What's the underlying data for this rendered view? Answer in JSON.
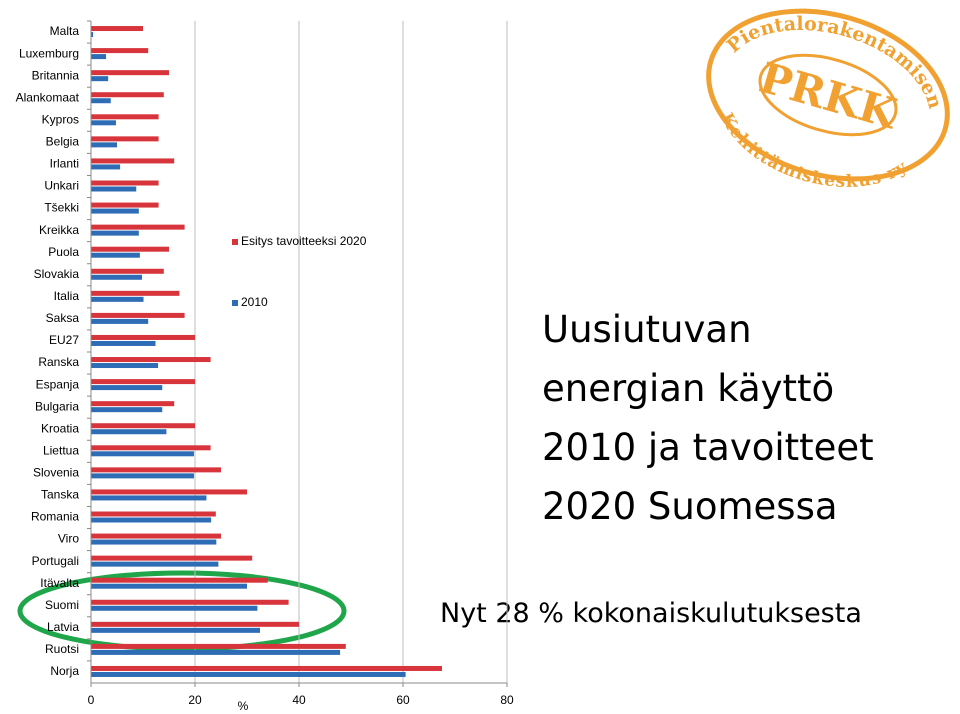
{
  "chart_data": {
    "type": "bar",
    "orientation": "horizontal",
    "categories": [
      "Malta",
      "Luxemburg",
      "Britannia",
      "Alankomaat",
      "Kypros",
      "Belgia",
      "Irlanti",
      "Unkari",
      "Tšekki",
      "Kreikka",
      "Puola",
      "Slovakia",
      "Italia",
      "Saksa",
      "EU27",
      "Ranska",
      "Espanja",
      "Bulgaria",
      "Kroatia",
      "Liettua",
      "Slovenia",
      "Tanska",
      "Romania",
      "Viro",
      "Portugali",
      "Itävalta",
      "Suomi",
      "Latvia",
      "Ruotsi",
      "Norja"
    ],
    "series": [
      {
        "name": "Esitys tavoitteeksi 2020",
        "color": "#d7343b",
        "values": [
          10,
          11,
          15,
          14,
          13,
          13,
          16,
          13,
          13,
          18,
          15,
          14,
          17,
          18,
          20,
          23,
          20,
          16,
          20,
          23,
          25,
          30,
          24,
          25,
          31,
          34,
          38,
          40,
          49,
          67.5
        ]
      },
      {
        "name": "2010",
        "color": "#2e6cb5",
        "values": [
          0.4,
          2.9,
          3.3,
          3.8,
          4.8,
          5,
          5.6,
          8.7,
          9.2,
          9.2,
          9.4,
          9.8,
          10.1,
          11,
          12.4,
          12.9,
          13.7,
          13.7,
          14.5,
          19.8,
          19.8,
          22.2,
          23.1,
          24.1,
          24.5,
          30,
          32,
          32.5,
          47.9,
          60.5
        ]
      }
    ],
    "xlim": [
      0,
      80
    ],
    "xticks": [
      0,
      20,
      40,
      60,
      80
    ],
    "xlabel": "%",
    "grid": true
  },
  "slide": {
    "title_lines": [
      "Uusiutuvan",
      "energian käyttö",
      "2010 ja tavoitteet",
      "2020 Suomessa"
    ],
    "note": "Nyt 28 % kokonaiskulutuksesta"
  },
  "logo": {
    "initials": "PRKK",
    "arc_top": "Pientalorakentamisen",
    "arc_bottom": "Kehittämiskeskus ry"
  }
}
